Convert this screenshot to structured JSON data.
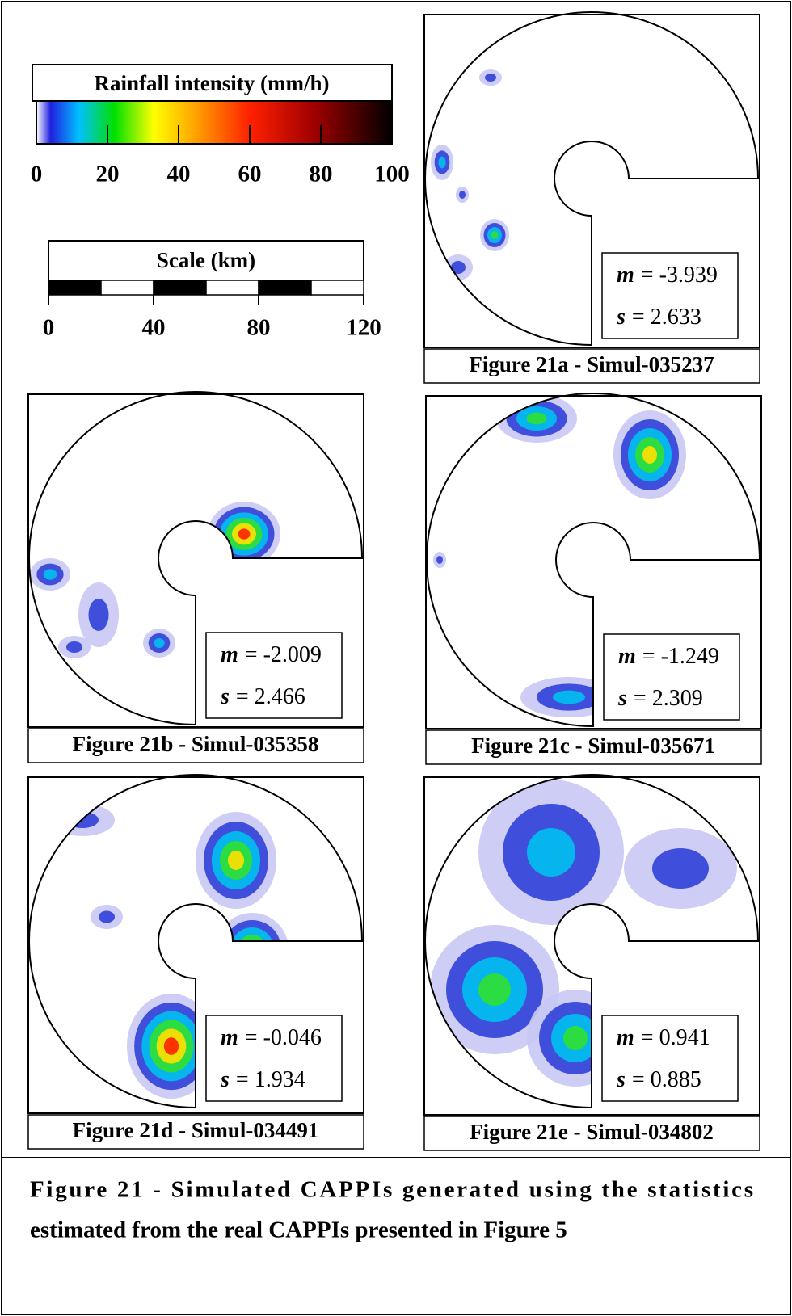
{
  "colorbar": {
    "title": "Rainfall intensity (mm/h)",
    "range": [
      0,
      100
    ],
    "ticks": [
      0,
      20,
      40,
      60,
      80,
      100
    ]
  },
  "scale": {
    "title": "Scale (km)",
    "range": [
      0,
      120
    ],
    "ticks": [
      0,
      40,
      80,
      120
    ]
  },
  "panels": [
    {
      "caption": "Figure 21a - Simul-035237",
      "m": {
        "symbol": "m",
        "text": "= -3.939"
      },
      "s": {
        "symbol": "s",
        "text": "= 2.633"
      }
    },
    {
      "caption": "Figure 21b - Simul-035358",
      "m": {
        "symbol": "m",
        "text": "= -2.009"
      },
      "s": {
        "symbol": "s",
        "text": "= 2.466"
      }
    },
    {
      "caption": "Figure 21c - Simul-035671",
      "m": {
        "symbol": "m",
        "text": "= -1.249"
      },
      "s": {
        "symbol": "s",
        "text": "= 2.309"
      }
    },
    {
      "caption": "Figure 21d - Simul-034491",
      "m": {
        "symbol": "m",
        "text": "= -0.046"
      },
      "s": {
        "symbol": "s",
        "text": "= 1.934"
      }
    },
    {
      "caption": "Figure 21e - Simul-034802",
      "m": {
        "symbol": "m",
        "text": "= 0.941"
      },
      "s": {
        "symbol": "s",
        "text": "= 0.885"
      }
    }
  ],
  "caption": {
    "line1": "Figure 21 - Simulated CAPPIs generated using the statistics",
    "line2": "estimated from the real CAPPIs presented in Figure 5"
  }
}
